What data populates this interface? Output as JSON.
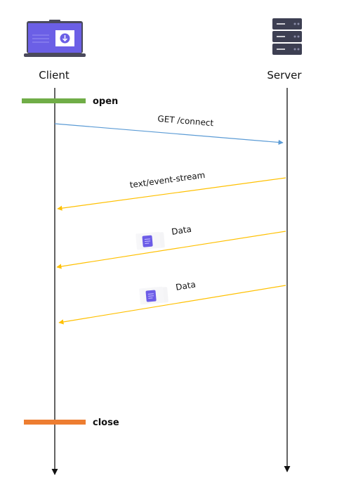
{
  "actors": {
    "client": {
      "label": "Client",
      "icon": "laptop-icon"
    },
    "server": {
      "label": "Server",
      "icon": "server-rack-icon"
    }
  },
  "states": {
    "open": {
      "label": "open",
      "color": "#70ad47"
    },
    "close": {
      "label": "close",
      "color": "#ed7d31"
    }
  },
  "messages": [
    {
      "label": "GET /connect",
      "from": "client",
      "to": "server",
      "color": "#5b9bd5"
    },
    {
      "label": "text/event-stream",
      "from": "server",
      "to": "client",
      "color": "#ffc000"
    },
    {
      "label": "Data",
      "from": "server",
      "to": "client",
      "color": "#ffc000",
      "icon": "document-icon"
    },
    {
      "label": "Data",
      "from": "server",
      "to": "client",
      "color": "#ffc000",
      "icon": "document-icon"
    }
  ],
  "colors": {
    "laptop_body": "#4a4a5c",
    "laptop_screen": "#6b5fe6",
    "server_body": "#3d3f52",
    "document": "#6c5ce7",
    "lifeline": "#111111"
  }
}
